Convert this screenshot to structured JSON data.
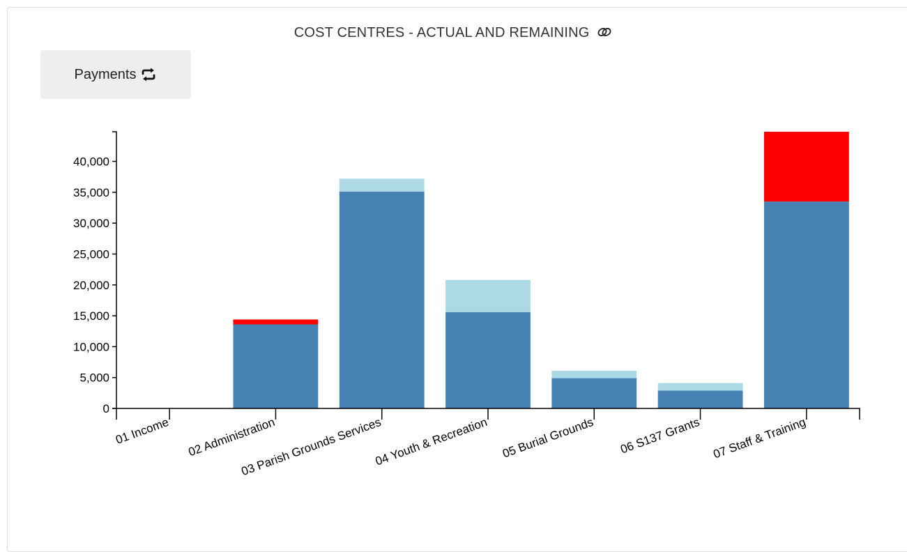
{
  "header": {
    "title": "COST CENTRES - ACTUAL AND REMAINING",
    "link_icon": "link-icon"
  },
  "toolbar": {
    "toggle_label": "Payments",
    "toggle_icon": "swap-icon"
  },
  "colors": {
    "actual": "#4682b4",
    "remaining": "#add8e6",
    "overspend": "#ff0000",
    "button_bg": "#eeeeee"
  },
  "chart_data": {
    "type": "bar",
    "stacked": true,
    "categories": [
      "01 Income",
      "02 Administration",
      "03 Parish Grounds Services",
      "04 Youth & Recreation",
      "05 Burial Grounds",
      "06 S137 Grants",
      "07 Staff & Training"
    ],
    "series": [
      {
        "color": "#4682b4",
        "values": [
          0,
          13600,
          35100,
          15600,
          4900,
          2900,
          33500
        ]
      },
      {
        "color": "#add8e6",
        "values": [
          0,
          0,
          2100,
          5200,
          1200,
          1200,
          0
        ]
      },
      {
        "color": "#ff0000",
        "values": [
          0,
          800,
          0,
          0,
          0,
          0,
          11300
        ]
      }
    ],
    "yticks": [
      0,
      5000,
      10000,
      15000,
      20000,
      25000,
      30000,
      35000,
      40000
    ],
    "ytick_labels": [
      "0",
      "5,000",
      "10,000",
      "15,000",
      "20,000",
      "25,000",
      "30,000",
      "35,000",
      "40,000"
    ],
    "ylim": [
      0,
      44800
    ],
    "grid": false,
    "legend": "none"
  }
}
